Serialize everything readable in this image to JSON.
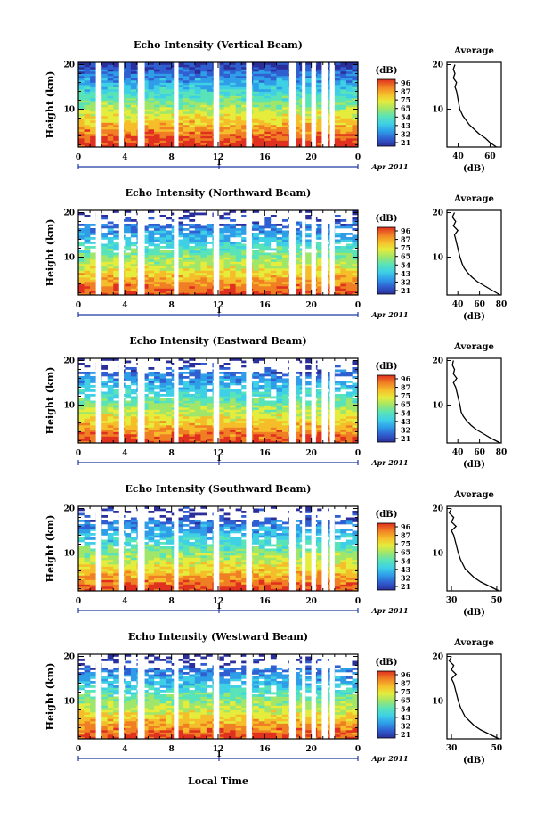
{
  "colorbar_unit": "(dB)",
  "colorbar_ticks": [
    "96",
    "87",
    "75",
    "65",
    "54",
    "43",
    "32",
    "21"
  ],
  "colorbar_colors": [
    "#2b2f9b",
    "#2f5fd0",
    "#2f9de8",
    "#3fd0e6",
    "#59e3b8",
    "#9fe66a",
    "#e5ec3c",
    "#f6bd2a",
    "#f07f24",
    "#e0301f"
  ],
  "xlabel": "Local Time",
  "date_label": "Apr 2011",
  "date_tick_label": "1",
  "avg_title": "Average",
  "avg_xlabel": "(dB)",
  "chart_data": [
    {
      "type": "heatmap",
      "title": "Echo Intensity (Vertical Beam)",
      "ylabel": "Height (km)",
      "x_ticks": [
        "0",
        "4",
        "8",
        "12",
        "16",
        "20",
        "0"
      ],
      "y_ticks": [
        "10",
        "20"
      ],
      "xlim": [
        0,
        24
      ],
      "ylim": [
        1.5,
        20.5
      ],
      "profile": {
        "xlabel": "(dB)",
        "x_ticks": [
          "40",
          "60"
        ],
        "xlim": [
          33,
          67
        ],
        "y_ticks": [
          "10",
          "20"
        ],
        "height": [
          1.5,
          2.5,
          3.5,
          4.5,
          5.5,
          6.5,
          7.5,
          8.5,
          10,
          12,
          14,
          15,
          16,
          17,
          18,
          19,
          20
        ],
        "value": [
          64,
          60,
          57,
          53,
          50,
          47,
          45,
          43,
          41,
          40,
          39,
          38,
          39,
          37,
          38,
          37,
          38
        ]
      }
    },
    {
      "type": "heatmap",
      "title": "Echo Intensity (Northward Beam)",
      "ylabel": "Height (km)",
      "x_ticks": [
        "0",
        "4",
        "8",
        "12",
        "16",
        "20",
        "0"
      ],
      "y_ticks": [
        "10",
        "20"
      ],
      "xlim": [
        0,
        24
      ],
      "ylim": [
        1.5,
        20.5
      ],
      "profile": {
        "xlabel": "(dB)",
        "x_ticks": [
          "40",
          "60",
          "80"
        ],
        "xlim": [
          30,
          80
        ],
        "y_ticks": [
          "10",
          "20"
        ],
        "height": [
          1.5,
          2.5,
          3.5,
          4.5,
          5.5,
          6.5,
          7.5,
          8.5,
          10,
          12,
          14,
          15,
          16,
          17,
          18,
          19,
          20
        ],
        "value": [
          79,
          72,
          65,
          58,
          53,
          49,
          46,
          44,
          42,
          40,
          38,
          37,
          40,
          36,
          38,
          35,
          37
        ]
      }
    },
    {
      "type": "heatmap",
      "title": "Echo Intensity (Eastward Beam)",
      "ylabel": "Height (km)",
      "x_ticks": [
        "0",
        "4",
        "8",
        "12",
        "16",
        "20",
        "0"
      ],
      "y_ticks": [
        "10",
        "20"
      ],
      "xlim": [
        0,
        24
      ],
      "ylim": [
        1.5,
        20.5
      ],
      "profile": {
        "xlabel": "(dB)",
        "x_ticks": [
          "40",
          "60",
          "80"
        ],
        "xlim": [
          30,
          80
        ],
        "y_ticks": [
          "10",
          "20"
        ],
        "height": [
          1.5,
          2.5,
          3.5,
          4.5,
          5.5,
          6.5,
          7.5,
          8.5,
          10,
          12,
          14,
          15,
          16,
          17,
          18,
          19,
          20
        ],
        "value": [
          79,
          71,
          64,
          57,
          52,
          48,
          45,
          43,
          42,
          40,
          38,
          36,
          39,
          36,
          37,
          35,
          36
        ]
      }
    },
    {
      "type": "heatmap",
      "title": "Echo Intensity (Southward Beam)",
      "ylabel": "Height (km)",
      "x_ticks": [
        "0",
        "4",
        "8",
        "12",
        "16",
        "20",
        "0"
      ],
      "y_ticks": [
        "10",
        "20"
      ],
      "xlim": [
        0,
        24
      ],
      "ylim": [
        1.5,
        20.5
      ],
      "profile": {
        "xlabel": "(dB)",
        "x_ticks": [
          "30",
          "50"
        ],
        "xlim": [
          28,
          52
        ],
        "y_ticks": [
          "10",
          "20"
        ],
        "height": [
          1.5,
          2.5,
          3.5,
          4.5,
          5.5,
          6.5,
          7.5,
          8.5,
          10,
          12,
          14,
          15,
          16,
          17,
          18,
          19,
          20
        ],
        "value": [
          51,
          47,
          43,
          40,
          38,
          36,
          35,
          34,
          33,
          32,
          31,
          30,
          32,
          30,
          31,
          29,
          30
        ]
      }
    },
    {
      "type": "heatmap",
      "title": "Echo Intensity (Westward Beam)",
      "ylabel": "Height (km)",
      "x_ticks": [
        "0",
        "4",
        "8",
        "12",
        "16",
        "20",
        "0"
      ],
      "y_ticks": [
        "10",
        "20"
      ],
      "xlim": [
        0,
        24
      ],
      "ylim": [
        1.5,
        20.5
      ],
      "profile": {
        "xlabel": "(dB)",
        "x_ticks": [
          "30",
          "50"
        ],
        "xlim": [
          28,
          52
        ],
        "y_ticks": [
          "10",
          "20"
        ],
        "height": [
          1.5,
          2.5,
          3.5,
          4.5,
          5.5,
          6.5,
          7.5,
          8.5,
          10,
          12,
          14,
          15,
          16,
          17,
          18,
          19,
          20
        ],
        "value": [
          51,
          47,
          43,
          40,
          38,
          36,
          35,
          34,
          33,
          32,
          31,
          30,
          32,
          30,
          31,
          29,
          30
        ]
      }
    }
  ]
}
